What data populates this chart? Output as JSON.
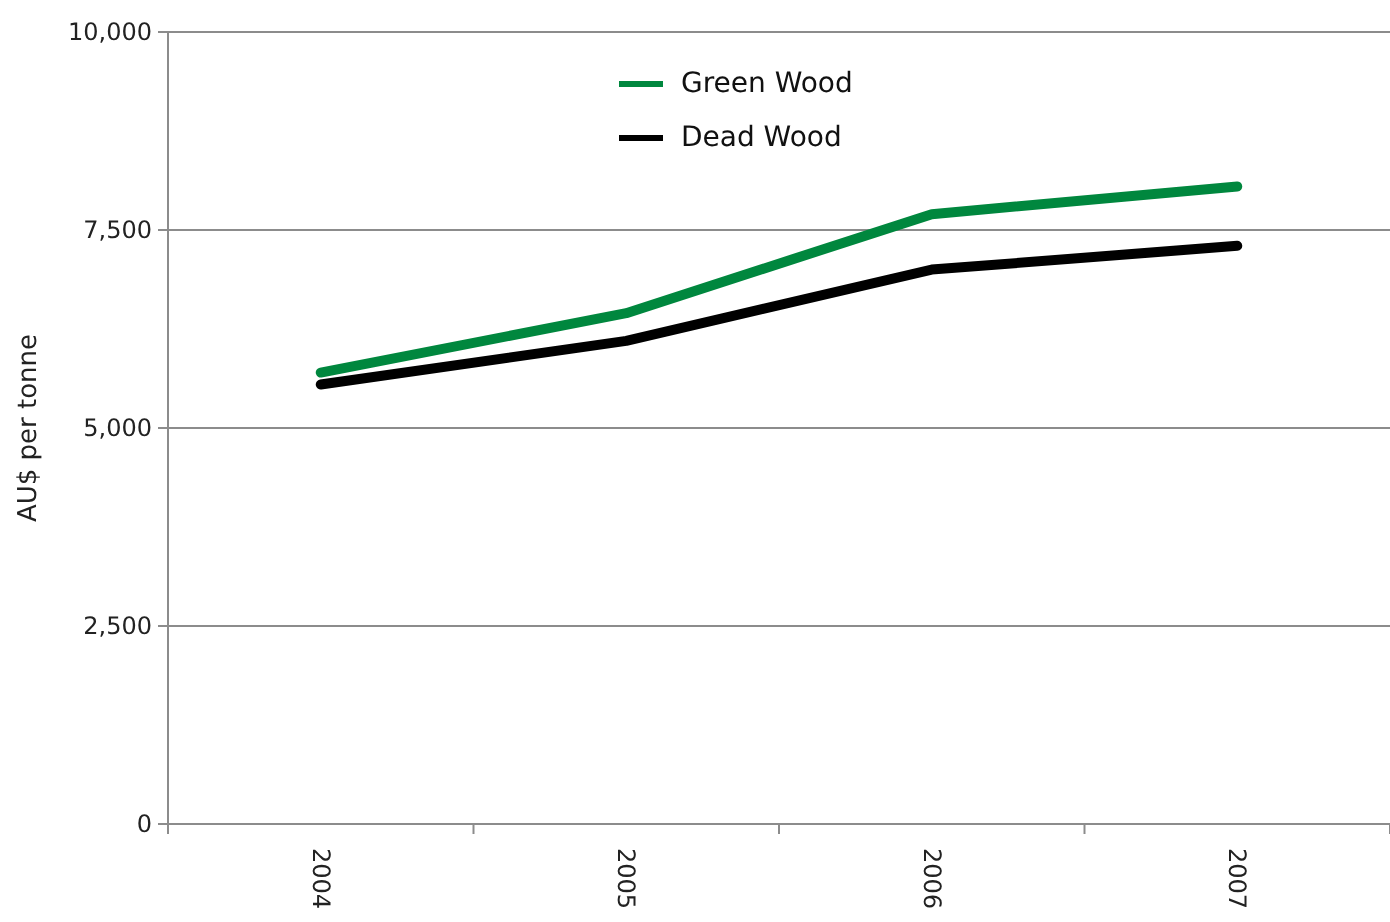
{
  "chart_data": {
    "type": "line",
    "ylabel": "AU$ per tonne",
    "categories": [
      "2004",
      "2005",
      "2006",
      "2007"
    ],
    "series": [
      {
        "name": "Green Wood",
        "color": "#00873e",
        "values": [
          5700,
          6450,
          7700,
          8050
        ]
      },
      {
        "name": "Dead Wood",
        "color": "#000000",
        "values": [
          5550,
          6100,
          7000,
          7300
        ]
      }
    ],
    "ylim": [
      0,
      10000
    ],
    "yticks": [
      {
        "value": 0,
        "label": "0"
      },
      {
        "value": 2500,
        "label": "2,500"
      },
      {
        "value": 5000,
        "label": "5,000"
      },
      {
        "value": 7500,
        "label": "7,500"
      },
      {
        "value": 10000,
        "label": "10,000"
      }
    ],
    "grid": "y",
    "legend": "top",
    "line_style": "solid",
    "marker": "none"
  }
}
